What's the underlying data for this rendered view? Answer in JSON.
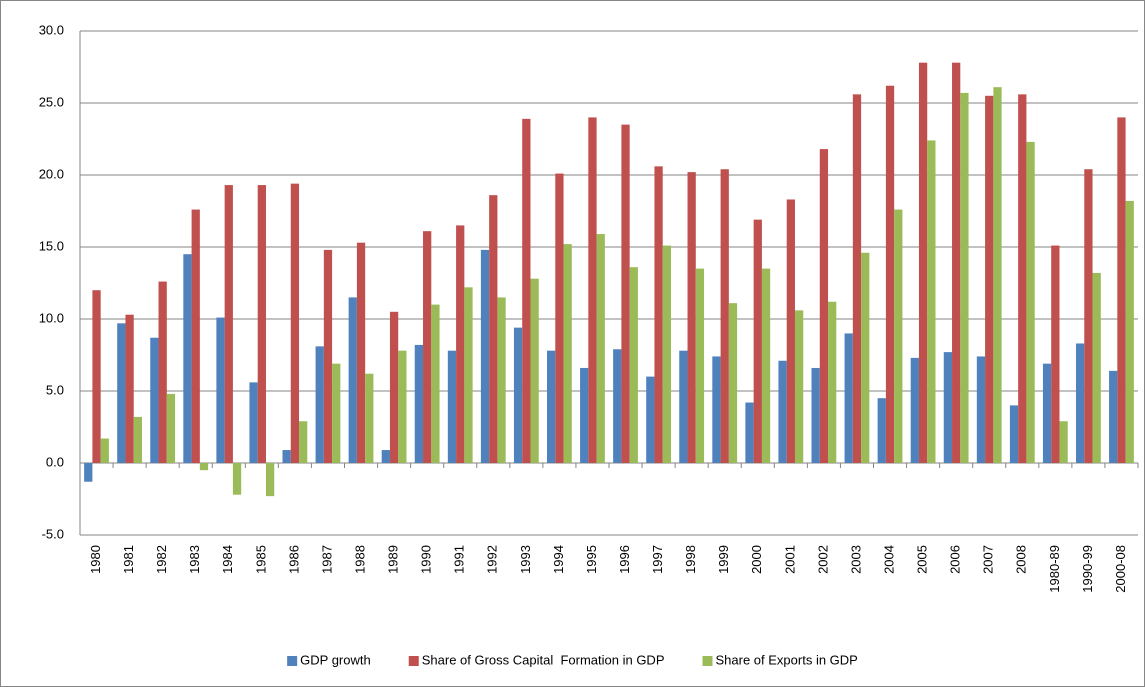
{
  "chart_data": {
    "type": "bar",
    "categories": [
      "1980",
      "1981",
      "1982",
      "1983",
      "1984",
      "1985",
      "1986",
      "1987",
      "1988",
      "1989",
      "1990",
      "1991",
      "1992",
      "1993",
      "1994",
      "1995",
      "1996",
      "1997",
      "1998",
      "1999",
      "2000",
      "2001",
      "2002",
      "2003",
      "2004",
      "2005",
      "2006",
      "2007",
      "2008",
      "1980-89",
      "1990-99",
      "2000-08"
    ],
    "series": [
      {
        "name": "GDP growth",
        "color": "#4f81bd",
        "values": [
          -1.3,
          9.7,
          8.7,
          14.5,
          10.1,
          5.6,
          0.9,
          8.1,
          11.5,
          0.9,
          8.2,
          7.8,
          14.8,
          9.4,
          7.8,
          6.6,
          7.9,
          6.0,
          7.8,
          7.4,
          4.2,
          7.1,
          6.6,
          9.0,
          4.5,
          7.3,
          7.7,
          7.4,
          4.0,
          6.9,
          8.3,
          6.4
        ]
      },
      {
        "name": "Share of Gross Capital  Formation in GDP",
        "color": "#c0504d",
        "values": [
          12.0,
          10.3,
          12.6,
          17.6,
          19.3,
          19.3,
          19.4,
          14.8,
          15.3,
          10.5,
          16.1,
          16.5,
          18.6,
          23.9,
          20.1,
          24.0,
          23.5,
          20.6,
          20.2,
          20.4,
          16.9,
          18.3,
          21.8,
          25.6,
          26.2,
          27.8,
          27.8,
          25.5,
          25.6,
          15.1,
          20.4,
          24.0
        ]
      },
      {
        "name": "Share of Exports in GDP",
        "color": "#9bbb59",
        "values": [
          1.7,
          3.2,
          4.8,
          -0.5,
          -2.2,
          -2.3,
          2.9,
          6.9,
          6.2,
          7.8,
          11.0,
          12.2,
          11.5,
          12.8,
          15.2,
          15.9,
          13.6,
          15.1,
          13.5,
          11.1,
          13.5,
          10.6,
          11.2,
          14.6,
          17.6,
          22.4,
          25.7,
          26.1,
          22.3,
          2.9,
          13.2,
          18.2
        ]
      }
    ],
    "ylim": [
      -5,
      30
    ],
    "yticks": [
      {
        "value": -5,
        "label": "-5.0"
      },
      {
        "value": 0,
        "label": "0.0"
      },
      {
        "value": 5,
        "label": "5.0"
      },
      {
        "value": 10,
        "label": "10.0"
      },
      {
        "value": 15,
        "label": "15.0"
      },
      {
        "value": 20,
        "label": "20.0"
      },
      {
        "value": 25,
        "label": "25.0"
      },
      {
        "value": 30,
        "label": "30.0"
      }
    ],
    "grid": true,
    "legend": "bottom"
  }
}
